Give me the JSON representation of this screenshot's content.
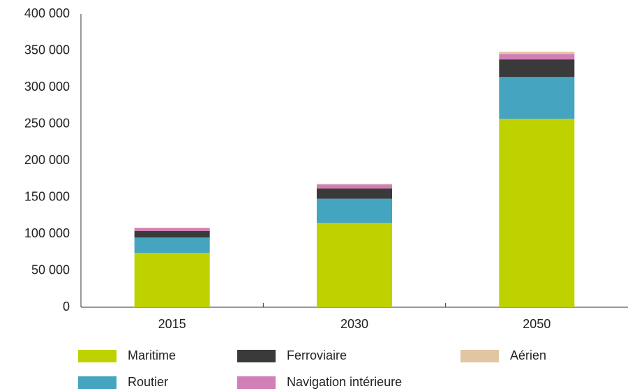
{
  "chart_data": {
    "type": "stacked-bar",
    "categories": [
      "2015",
      "2030",
      "2050"
    ],
    "series": [
      {
        "name": "Maritime",
        "color": "#bed200",
        "values": [
          74000,
          115000,
          257000
        ]
      },
      {
        "name": "Routier",
        "color": "#45a5c0",
        "values": [
          21000,
          33000,
          57000
        ]
      },
      {
        "name": "Ferroviaire",
        "color": "#3a3a3a",
        "values": [
          9000,
          14000,
          24000
        ]
      },
      {
        "name": "Navigation intérieure",
        "color": "#d27fb8",
        "values": [
          4000,
          5500,
          7500
        ]
      },
      {
        "name": "Aérien",
        "color": "#e2c6a4",
        "values": [
          500,
          700,
          3000
        ]
      }
    ],
    "ylim": [
      0,
      400000
    ],
    "yticks": [
      0,
      {
        "value": 50000,
        "label": "50 000"
      },
      {
        "value": 100000,
        "label": "100 000"
      },
      {
        "value": 150000,
        "label": "150 000"
      },
      {
        "value": 200000,
        "label": "200 000"
      },
      {
        "value": 250000,
        "label": "250 000"
      },
      {
        "value": 300000,
        "label": "300 000"
      },
      {
        "value": 350000,
        "label": "350 000"
      },
      {
        "value": 400000,
        "label": "400 000"
      }
    ],
    "grid": false
  }
}
